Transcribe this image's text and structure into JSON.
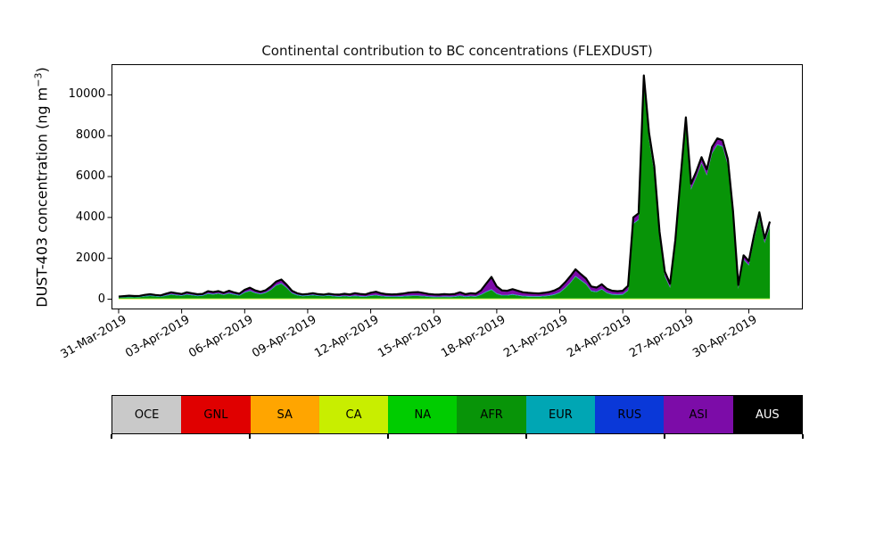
{
  "figure": {
    "background": "#ffffff"
  },
  "chart": {
    "title": "Continental contribution to BC concentrations (FLEXDUST)",
    "ylabel_prefix": "DUST-403 concentration (ng m",
    "ylabel_sup": "−3",
    "ylabel_suffix": ")"
  },
  "chart_data": {
    "type": "area",
    "subtype": "stacked",
    "title": "Continental contribution to BC concentrations (FLEXDUST)",
    "xlabel": "",
    "ylabel": "DUST-403 concentration (ng m−3)",
    "grid": false,
    "legend_position": "bottom-strip",
    "x_start_date": "31-Mar-2019",
    "x_step_days": 0.25,
    "ylim": [
      -500,
      11500
    ],
    "yticks": {
      "values": [
        0,
        2000,
        4000,
        6000,
        8000,
        10000
      ],
      "labels": [
        "0",
        "2000",
        "4000",
        "6000",
        "8000",
        "10000"
      ]
    },
    "xticks": {
      "days": [
        0,
        3,
        6,
        9,
        12,
        15,
        18,
        21,
        24,
        27,
        30
      ],
      "labels": [
        "31-Mar-2019",
        "03-Apr-2019",
        "06-Apr-2019",
        "09-Apr-2019",
        "12-Apr-2019",
        "15-Apr-2019",
        "18-Apr-2019",
        "21-Apr-2019",
        "24-Apr-2019",
        "27-Apr-2019",
        "30-Apr-2019"
      ]
    },
    "total_line_color": "#000000",
    "total": [
      130,
      150,
      170,
      155,
      165,
      210,
      240,
      205,
      185,
      270,
      340,
      295,
      255,
      340,
      290,
      240,
      260,
      390,
      345,
      395,
      310,
      410,
      330,
      270,
      460,
      560,
      430,
      360,
      440,
      620,
      860,
      960,
      710,
      410,
      290,
      235,
      255,
      295,
      245,
      225,
      265,
      235,
      225,
      265,
      235,
      295,
      255,
      235,
      315,
      365,
      285,
      245,
      235,
      240,
      270,
      310,
      340,
      345,
      305,
      255,
      235,
      225,
      245,
      235,
      255,
      340,
      245,
      290,
      270,
      430,
      760,
      1090,
      620,
      430,
      410,
      490,
      410,
      340,
      310,
      295,
      280,
      310,
      350,
      430,
      560,
      820,
      1120,
      1460,
      1230,
      1010,
      620,
      570,
      730,
      510,
      410,
      390,
      410,
      650,
      4000,
      4200,
      10950,
      8150,
      6500,
      3300,
      1350,
      760,
      2900,
      5950,
      8900,
      5650,
      6250,
      6950,
      6350,
      7450,
      7870,
      7780,
      6850,
      4300,
      700,
      2150,
      1870,
      3150,
      4250,
      2980,
      3800
    ],
    "layers": [
      {
        "name": "OCE",
        "color": "#c9c9c9",
        "mode": "constant",
        "value": 0
      },
      {
        "name": "GNL",
        "color": "#e00000",
        "mode": "constant",
        "value": 0
      },
      {
        "name": "SA",
        "color": "#ffa500",
        "mode": "constant",
        "value": 0
      },
      {
        "name": "CA",
        "color": "#c8ee00",
        "mode": "constant",
        "value": 35
      },
      {
        "name": "NA",
        "color": "#00cc00",
        "mode": "constant",
        "value": 12
      },
      {
        "name": "AFR",
        "color": "#089408",
        "mode": "remainder"
      },
      {
        "name": "EUR",
        "color": "#00a6b4",
        "mode": "constant",
        "value": 24
      },
      {
        "name": "RUS",
        "color": "#0a38d8",
        "mode": "constant",
        "value": 10
      },
      {
        "name": "ASI",
        "color": "#7c0ca8",
        "mode": "series",
        "values": [
          25,
          30,
          35,
          30,
          35,
          45,
          50,
          40,
          40,
          70,
          85,
          75,
          60,
          85,
          70,
          55,
          60,
          95,
          85,
          95,
          75,
          100,
          80,
          65,
          110,
          130,
          100,
          85,
          100,
          140,
          160,
          170,
          130,
          90,
          65,
          55,
          60,
          70,
          55,
          50,
          60,
          70,
          75,
          90,
          85,
          110,
          95,
          90,
          120,
          150,
          110,
          95,
          90,
          95,
          110,
          130,
          150,
          155,
          135,
          110,
          100,
          95,
          105,
          100,
          110,
          150,
          105,
          125,
          115,
          190,
          380,
          600,
          330,
          220,
          200,
          240,
          200,
          170,
          150,
          140,
          130,
          140,
          155,
          180,
          210,
          260,
          300,
          320,
          280,
          250,
          200,
          190,
          220,
          180,
          160,
          150,
          160,
          200,
          280,
          290,
          350,
          320,
          300,
          250,
          200,
          170,
          220,
          260,
          300,
          250,
          260,
          270,
          260,
          280,
          290,
          285,
          270,
          230,
          160,
          190,
          185,
          210,
          230,
          200,
          220
        ]
      },
      {
        "name": "AUS",
        "color": "#000000",
        "mode": "constant",
        "value": 0
      }
    ]
  },
  "legend": {
    "entries": [
      {
        "label": "OCE",
        "color": "#c9c9c9",
        "text_color": "#000000"
      },
      {
        "label": "GNL",
        "color": "#e00000",
        "text_color": "#000000"
      },
      {
        "label": "SA",
        "color": "#ffa500",
        "text_color": "#000000"
      },
      {
        "label": "CA",
        "color": "#c8ee00",
        "text_color": "#000000"
      },
      {
        "label": "NA",
        "color": "#00cc00",
        "text_color": "#000000"
      },
      {
        "label": "AFR",
        "color": "#089408",
        "text_color": "#000000"
      },
      {
        "label": "EUR",
        "color": "#00a6b4",
        "text_color": "#000000"
      },
      {
        "label": "RUS",
        "color": "#0a38d8",
        "text_color": "#000000"
      },
      {
        "label": "ASI",
        "color": "#7c0ca8",
        "text_color": "#000000"
      },
      {
        "label": "AUS",
        "color": "#000000",
        "text_color": "#ffffff"
      }
    ],
    "axis_tick_count": 6
  }
}
